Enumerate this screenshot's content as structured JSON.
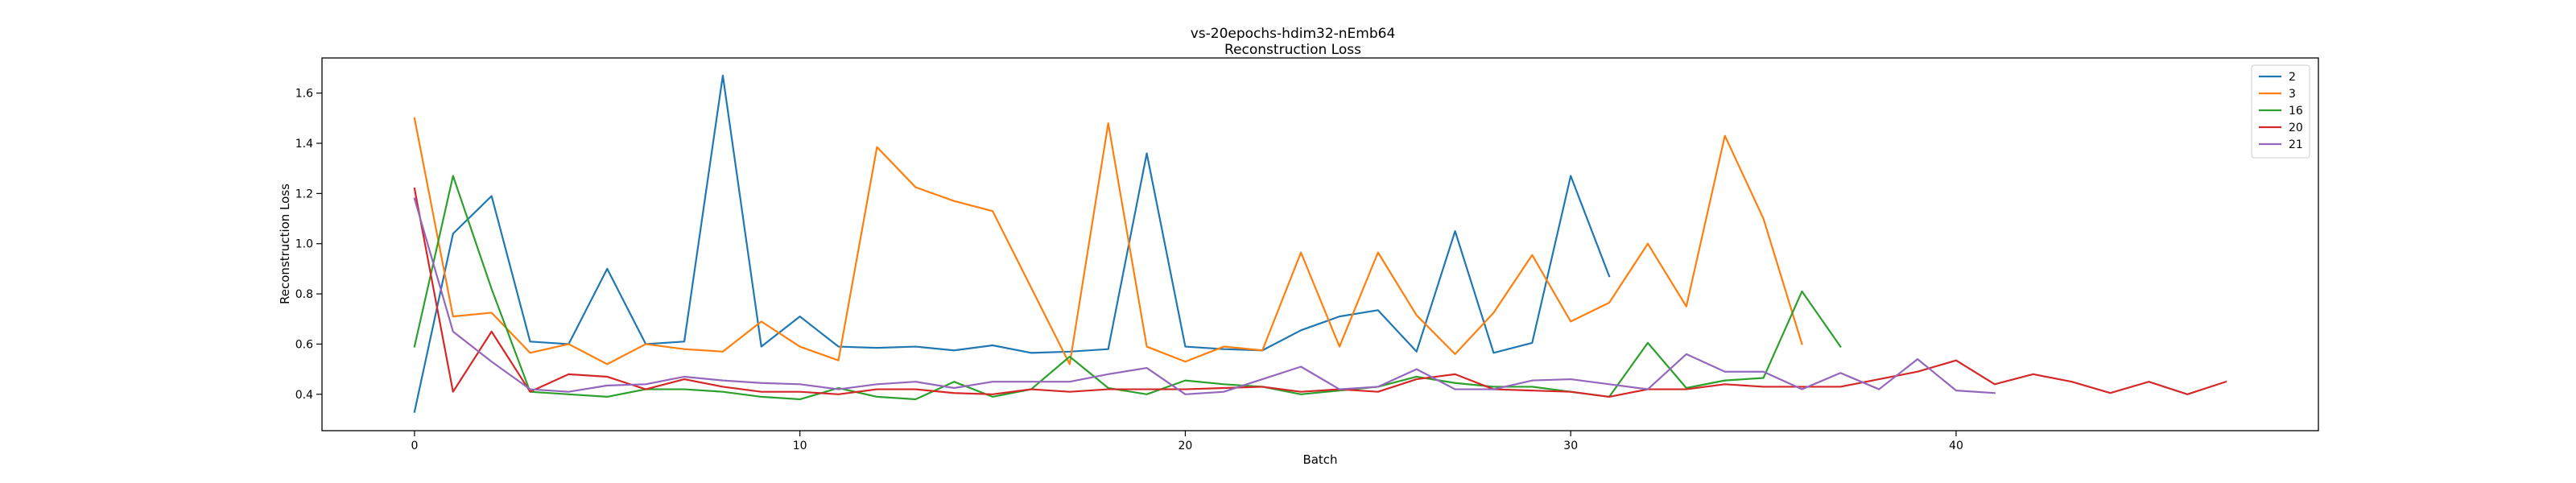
{
  "chart_data": {
    "type": "line",
    "title": "vs-20epochs-hdim32-nEmb64",
    "subtitle": "Reconstruction Loss",
    "xlabel": "Batch",
    "ylabel": "Reconstruction Loss",
    "xlim": [
      -2.4,
      49.4
    ],
    "ylim": [
      0.255,
      1.74
    ],
    "xticks": [
      0,
      10,
      20,
      30,
      40
    ],
    "yticks": [
      0.4,
      0.6,
      0.8,
      1.0,
      1.2,
      1.4,
      1.6
    ],
    "xtick_labels": [
      "0",
      "10",
      "20",
      "30",
      "40"
    ],
    "ytick_labels": [
      "0.4",
      "0.6",
      "0.8",
      "1.0",
      "1.2",
      "1.4",
      "1.6"
    ],
    "grid": false,
    "legend_position": "top-right",
    "series": [
      {
        "name": "2",
        "color": "#1f77b4",
        "values": [
          0.33,
          1.04,
          1.19,
          0.61,
          0.6,
          0.9,
          0.6,
          0.61,
          1.67,
          0.59,
          0.71,
          0.59,
          0.585,
          0.59,
          0.575,
          0.595,
          0.565,
          0.57,
          0.58,
          1.36,
          0.59,
          0.58,
          0.575,
          0.655,
          0.71,
          0.735,
          0.57,
          1.05,
          0.565,
          0.605,
          1.27,
          0.87
        ]
      },
      {
        "name": "3",
        "color": "#ff7f0e",
        "values": [
          1.5,
          0.71,
          0.725,
          0.565,
          0.6,
          0.52,
          0.6,
          0.58,
          0.57,
          0.69,
          0.59,
          0.535,
          1.385,
          1.225,
          1.17,
          1.13,
          0.825,
          0.52,
          1.48,
          0.59,
          0.53,
          0.59,
          0.575,
          0.965,
          0.59,
          0.965,
          0.715,
          0.56,
          0.725,
          0.955,
          0.69,
          0.765,
          1.0,
          0.75,
          1.43,
          1.1,
          0.6
        ]
      },
      {
        "name": "16",
        "color": "#2ca02c",
        "values": [
          0.59,
          1.27,
          0.82,
          0.41,
          0.4,
          0.39,
          0.42,
          0.42,
          0.41,
          0.39,
          0.38,
          0.425,
          0.39,
          0.38,
          0.45,
          0.39,
          0.42,
          0.55,
          0.425,
          0.4,
          0.455,
          0.44,
          0.43,
          0.4,
          0.415,
          0.43,
          0.47,
          0.445,
          0.43,
          0.43,
          0.41,
          0.39,
          0.605,
          0.425,
          0.455,
          0.465,
          0.81,
          0.59
        ]
      },
      {
        "name": "20",
        "color": "#d62728",
        "values": [
          1.22,
          0.41,
          0.65,
          0.41,
          0.48,
          0.47,
          0.42,
          0.46,
          0.43,
          0.41,
          0.41,
          0.4,
          0.42,
          0.42,
          0.405,
          0.4,
          0.42,
          0.41,
          0.42,
          0.42,
          0.42,
          0.425,
          0.43,
          0.41,
          0.42,
          0.41,
          0.46,
          0.48,
          0.42,
          0.415,
          0.41,
          0.39,
          0.42,
          0.42,
          0.44,
          0.43,
          0.43,
          0.43,
          0.46,
          0.49,
          0.535,
          0.44,
          0.48,
          0.45,
          0.405,
          0.45,
          0.4,
          0.45
        ]
      },
      {
        "name": "21",
        "color": "#9467bd",
        "values": [
          1.18,
          0.65,
          0.53,
          0.42,
          0.41,
          0.435,
          0.44,
          0.47,
          0.455,
          0.445,
          0.44,
          0.42,
          0.44,
          0.45,
          0.425,
          0.45,
          0.45,
          0.45,
          0.48,
          0.505,
          0.4,
          0.41,
          0.46,
          0.51,
          0.42,
          0.43,
          0.5,
          0.42,
          0.42,
          0.455,
          0.46,
          0.44,
          0.42,
          0.56,
          0.49,
          0.49,
          0.42,
          0.485,
          0.42,
          0.54,
          0.415,
          0.405
        ]
      }
    ]
  }
}
